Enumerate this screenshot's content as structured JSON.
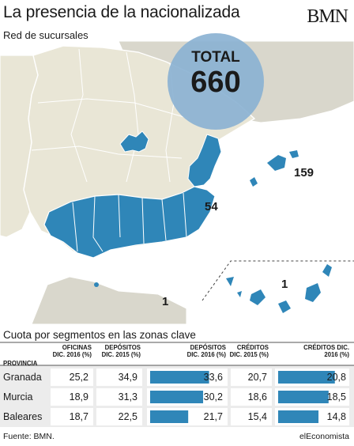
{
  "title": "La presencia de la nacionalizada",
  "logo": "BMN",
  "subtitle": "Red de sucursales",
  "total": {
    "label": "TOTAL",
    "value": "660"
  },
  "map_labels": {
    "baleares": "159",
    "murcia": "54",
    "melilla": "1",
    "canarias": "1"
  },
  "colors": {
    "highlight": "#2f86b8",
    "land": "#e9e6d6",
    "circle": "#8bb2d2"
  },
  "section_title": "Cuota por segmentos en las zonas clave",
  "table": {
    "headers": [
      "PROVINCIA",
      "OFICINAS DIC. 2016 (%)",
      "DEPÓSITOS DIC. 2015 (%)",
      "DEPÓSITOS DIC. 2016 (%)",
      "CRÉDITOS DIC. 2015 (%)",
      "CRÉDITOS DIC. 2016 (%)"
    ],
    "rows": [
      {
        "provincia": "Granada",
        "oficinas_2016": "25,2",
        "depositos_2015": "34,9",
        "depositos_2016": "33,6",
        "creditos_2015": "20,7",
        "creditos_2016": "20,8",
        "bar_depositos_2016": 33.6,
        "bar_creditos_2016": 20.8
      },
      {
        "provincia": "Murcia",
        "oficinas_2016": "18,9",
        "depositos_2015": "31,3",
        "depositos_2016": "30,2",
        "creditos_2015": "18,6",
        "creditos_2016": "18,5",
        "bar_depositos_2016": 30.2,
        "bar_creditos_2016": 18.5
      },
      {
        "provincia": "Baleares",
        "oficinas_2016": "18,7",
        "depositos_2015": "22,5",
        "depositos_2016": "21,7",
        "creditos_2015": "15,4",
        "creditos_2016": "14,8",
        "bar_depositos_2016": 21.7,
        "bar_creditos_2016": 14.8
      }
    ]
  },
  "footer": {
    "source": "Fuente: BMN.",
    "brand": "elEconomista"
  }
}
